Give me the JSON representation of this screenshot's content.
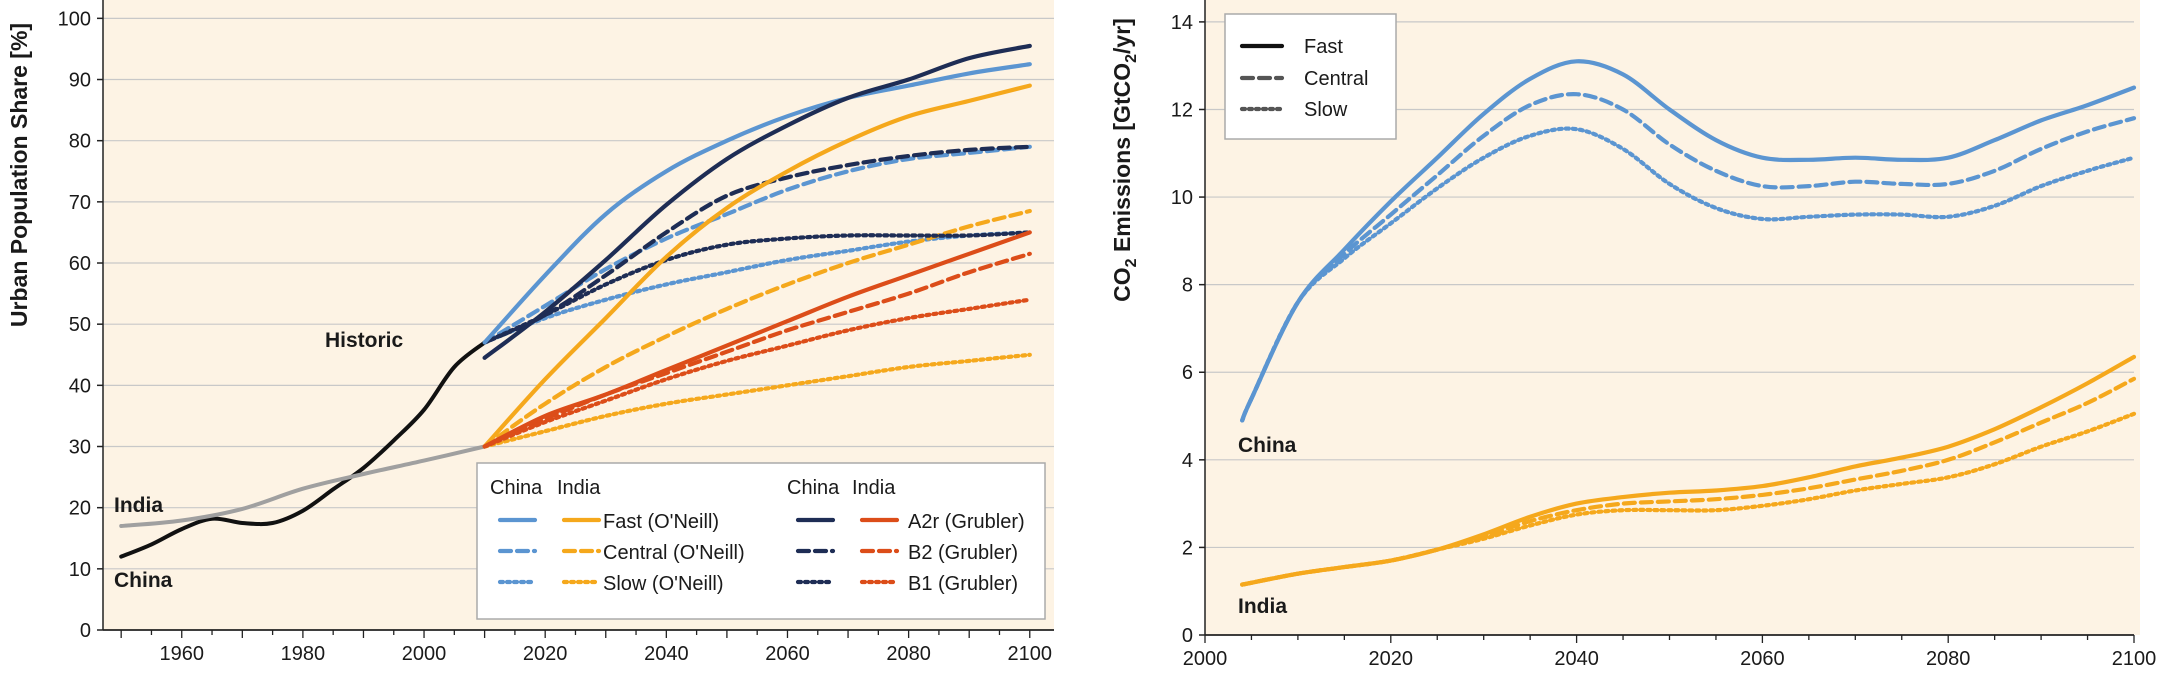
{
  "chart_data": [
    {
      "type": "line",
      "ylabel": "Urban Population Share [%]",
      "xlim": [
        1947,
        2104
      ],
      "ylim": [
        0,
        103
      ],
      "xticks": [
        "1960",
        "1980",
        "2000",
        "2020",
        "2040",
        "2060",
        "2080",
        "2100"
      ],
      "yticks": [
        "0",
        "10",
        "20",
        "30",
        "40",
        "50",
        "60",
        "70",
        "80",
        "90",
        "100"
      ],
      "annotations": {
        "historic": "Historic",
        "india": "India",
        "china": "China"
      },
      "legend": {
        "headers": {
          "china_left": "China",
          "india_left": "India",
          "china_right": "China",
          "india_right": "India"
        },
        "entries": [
          "Fast (O'Neill)",
          "Central (O'Neill)",
          "Slow (O'Neill)",
          "A2r (Grubler)",
          "B2 (Grubler)",
          "B1 (Grubler)"
        ]
      },
      "colors": {
        "china_oneill": "#5b95d1",
        "india_oneill": "#f5a81c",
        "china_grubler": "#1e2d55",
        "india_grubler": "#dc4d19",
        "historic_china": "#111111",
        "historic_india": "#a0a0a0",
        "background": "#fdf3e4"
      },
      "series": [
        {
          "name": "China",
          "group": "historic",
          "x": [
            1950,
            1955,
            1960,
            1965,
            1970,
            1975,
            1980,
            1985,
            1990,
            1995,
            2000,
            2005,
            2010
          ],
          "y": [
            12,
            14,
            16.5,
            18.2,
            17.5,
            17.5,
            19.5,
            23,
            26.5,
            31,
            36,
            43,
            47
          ]
        },
        {
          "name": "India",
          "group": "historic",
          "x": [
            1950,
            1960,
            1970,
            1980,
            1990,
            2000,
            2010
          ],
          "y": [
            17,
            17.9,
            19.8,
            23.1,
            25.5,
            27.7,
            30
          ]
        },
        {
          "name": "Fast (O'Neill)",
          "group": "china_oneill",
          "x": [
            2010,
            2020,
            2030,
            2040,
            2050,
            2060,
            2070,
            2080,
            2090,
            2100
          ],
          "y": [
            47,
            58,
            68,
            75,
            80,
            84,
            87,
            89,
            91,
            92.5
          ]
        },
        {
          "name": "Central (O'Neill)",
          "group": "china_oneill",
          "x": [
            2010,
            2020,
            2030,
            2040,
            2050,
            2060,
            2070,
            2080,
            2090,
            2100
          ],
          "y": [
            47,
            53,
            59,
            64,
            68,
            72,
            75,
            77,
            78,
            79
          ]
        },
        {
          "name": "Slow (O'Neill)",
          "group": "china_oneill",
          "x": [
            2010,
            2020,
            2030,
            2040,
            2050,
            2060,
            2070,
            2080,
            2090,
            2100
          ],
          "y": [
            47,
            51,
            54,
            56.5,
            58.5,
            60.5,
            62,
            63.5,
            64.5,
            65
          ]
        },
        {
          "name": "Fast (O'Neill)",
          "group": "india_oneill",
          "x": [
            2010,
            2020,
            2030,
            2040,
            2050,
            2060,
            2070,
            2080,
            2090,
            2100
          ],
          "y": [
            30,
            41,
            51,
            61,
            69,
            75,
            80,
            84,
            86.5,
            89
          ]
        },
        {
          "name": "Central (O'Neill)",
          "group": "india_oneill",
          "x": [
            2010,
            2020,
            2030,
            2040,
            2050,
            2060,
            2070,
            2080,
            2090,
            2100
          ],
          "y": [
            30,
            37,
            43,
            48,
            52.5,
            56.5,
            60,
            63,
            66,
            68.5
          ]
        },
        {
          "name": "Slow (O'Neill)",
          "group": "india_oneill",
          "x": [
            2010,
            2020,
            2030,
            2040,
            2050,
            2060,
            2070,
            2080,
            2090,
            2100
          ],
          "y": [
            30,
            32.5,
            35,
            37,
            38.5,
            40,
            41.5,
            43,
            44,
            45
          ]
        },
        {
          "name": "A2r (Grubler)",
          "group": "china_grubler",
          "x": [
            2010,
            2020,
            2030,
            2040,
            2050,
            2060,
            2070,
            2080,
            2090,
            2100
          ],
          "y": [
            44.5,
            52,
            60.5,
            69.5,
            77,
            82.5,
            87,
            90,
            93.5,
            95.5
          ]
        },
        {
          "name": "B2 (Grubler)",
          "group": "china_grubler",
          "x": [
            2010,
            2020,
            2030,
            2040,
            2050,
            2060,
            2070,
            2080,
            2090,
            2100
          ],
          "y": [
            47,
            51.5,
            58,
            65,
            71,
            74,
            76,
            77.5,
            78.5,
            79
          ]
        },
        {
          "name": "B1 (Grubler)",
          "group": "china_grubler",
          "x": [
            2010,
            2020,
            2030,
            2040,
            2050,
            2060,
            2070,
            2080,
            2090,
            2100
          ],
          "y": [
            47,
            51.5,
            56.5,
            60.5,
            63,
            64,
            64.5,
            64.5,
            64.5,
            65
          ]
        },
        {
          "name": "A2r (Grubler)",
          "group": "india_grubler",
          "x": [
            2010,
            2020,
            2030,
            2040,
            2050,
            2060,
            2070,
            2080,
            2090,
            2100
          ],
          "y": [
            30,
            35,
            38.5,
            42.5,
            46.5,
            50.5,
            54.5,
            58,
            61.5,
            65
          ]
        },
        {
          "name": "B2 (Grubler)",
          "group": "india_grubler",
          "x": [
            2010,
            2020,
            2030,
            2040,
            2050,
            2060,
            2070,
            2080,
            2090,
            2100
          ],
          "y": [
            30,
            34.5,
            38.5,
            42,
            45.5,
            49,
            52,
            55,
            58.5,
            61.5
          ]
        },
        {
          "name": "B1 (Grubler)",
          "group": "india_grubler",
          "x": [
            2010,
            2020,
            2030,
            2040,
            2050,
            2060,
            2070,
            2080,
            2090,
            2100
          ],
          "y": [
            30,
            34,
            37.5,
            41,
            44,
            46.5,
            49,
            51,
            52.5,
            54
          ]
        }
      ]
    },
    {
      "type": "line",
      "ylabel": "CO2 Emissions [GtCO2/yr]",
      "xlim": [
        2000,
        2100
      ],
      "ylim": [
        0,
        14.5
      ],
      "xticks": [
        "2000",
        "2020",
        "2040",
        "2060",
        "2080",
        "2100"
      ],
      "yticks": [
        "0",
        "2",
        "4",
        "6",
        "8",
        "10",
        "12",
        "14"
      ],
      "annotations": {
        "china": "China",
        "india": "India"
      },
      "legend": {
        "entries": [
          "Fast",
          "Central",
          "Slow"
        ]
      },
      "colors": {
        "china": "#5b95d1",
        "india": "#f5a81c",
        "background": "#fdf3e4"
      },
      "series": [
        {
          "name": "Fast",
          "region": "China",
          "x": [
            2004,
            2005,
            2010,
            2015,
            2020,
            2025,
            2030,
            2035,
            2040,
            2045,
            2050,
            2055,
            2060,
            2065,
            2070,
            2075,
            2080,
            2085,
            2090,
            2095,
            2100
          ],
          "y": [
            4.9,
            5.4,
            7.6,
            8.8,
            9.9,
            10.9,
            11.9,
            12.7,
            13.1,
            12.8,
            12.0,
            11.3,
            10.9,
            10.85,
            10.9,
            10.85,
            10.9,
            11.3,
            11.75,
            12.1,
            12.5
          ]
        },
        {
          "name": "Central",
          "region": "China",
          "x": [
            2004,
            2005,
            2010,
            2015,
            2020,
            2025,
            2030,
            2035,
            2040,
            2045,
            2050,
            2055,
            2060,
            2065,
            2070,
            2075,
            2080,
            2085,
            2090,
            2095,
            2100
          ],
          "y": [
            4.9,
            5.4,
            7.6,
            8.7,
            9.6,
            10.5,
            11.4,
            12.1,
            12.35,
            12.0,
            11.2,
            10.6,
            10.25,
            10.25,
            10.35,
            10.3,
            10.3,
            10.6,
            11.1,
            11.5,
            11.8
          ]
        },
        {
          "name": "Slow",
          "region": "China",
          "x": [
            2004,
            2005,
            2010,
            2015,
            2020,
            2025,
            2030,
            2035,
            2040,
            2045,
            2050,
            2055,
            2060,
            2065,
            2070,
            2075,
            2080,
            2085,
            2090,
            2095,
            2100
          ],
          "y": [
            4.9,
            5.4,
            7.6,
            8.6,
            9.4,
            10.2,
            10.9,
            11.4,
            11.55,
            11.1,
            10.3,
            9.75,
            9.5,
            9.55,
            9.6,
            9.6,
            9.55,
            9.8,
            10.25,
            10.6,
            10.9
          ]
        },
        {
          "name": "Fast",
          "region": "India",
          "x": [
            2004,
            2010,
            2015,
            2020,
            2025,
            2030,
            2035,
            2040,
            2045,
            2050,
            2055,
            2060,
            2065,
            2070,
            2075,
            2080,
            2085,
            2090,
            2095,
            2100
          ],
          "y": [
            1.15,
            1.4,
            1.55,
            1.7,
            1.95,
            2.3,
            2.7,
            3.0,
            3.15,
            3.25,
            3.3,
            3.4,
            3.6,
            3.85,
            4.05,
            4.3,
            4.7,
            5.2,
            5.75,
            6.35
          ]
        },
        {
          "name": "Central",
          "region": "India",
          "x": [
            2004,
            2010,
            2015,
            2020,
            2025,
            2030,
            2035,
            2040,
            2045,
            2050,
            2055,
            2060,
            2065,
            2070,
            2075,
            2080,
            2085,
            2090,
            2095,
            2100
          ],
          "y": [
            1.15,
            1.4,
            1.55,
            1.7,
            1.95,
            2.25,
            2.6,
            2.85,
            3.0,
            3.05,
            3.1,
            3.2,
            3.35,
            3.55,
            3.75,
            4.0,
            4.4,
            4.85,
            5.3,
            5.85
          ]
        },
        {
          "name": "Slow",
          "region": "India",
          "x": [
            2004,
            2010,
            2015,
            2020,
            2025,
            2030,
            2035,
            2040,
            2045,
            2050,
            2055,
            2060,
            2065,
            2070,
            2075,
            2080,
            2085,
            2090,
            2095,
            2100
          ],
          "y": [
            1.15,
            1.4,
            1.55,
            1.7,
            1.95,
            2.2,
            2.5,
            2.75,
            2.85,
            2.85,
            2.85,
            2.95,
            3.1,
            3.3,
            3.45,
            3.6,
            3.9,
            4.3,
            4.65,
            5.05
          ]
        }
      ]
    }
  ]
}
